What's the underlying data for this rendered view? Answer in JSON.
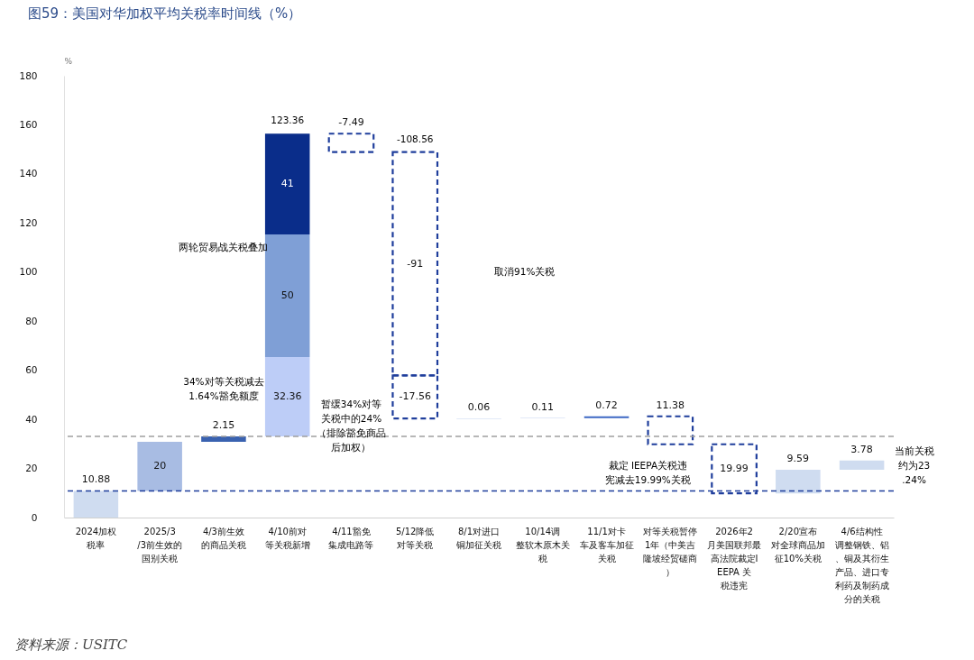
{
  "chart_data": {
    "type": "bar",
    "title": "图59：美国对华加权平均关税率时间线（%）",
    "ylabel": "%",
    "categories": [
      "2024加权税率",
      "2025/3/3前生效的国别关税",
      "4/3前生效的商品关税",
      "4/10前对等关税新增",
      "4/11豁免集成电路等",
      "5/12降低对等关税",
      "8/1对进口铜加征关税",
      "10/14调整软木原木关税",
      "11/1对卡车及客车加征关税",
      "对等关税暂停1年（中美吉隆坡经贸磋商）",
      "2026年2月美国联邦最高法院裁定IEEPA 关税违宪",
      "2/20宣布对全球商品加征10%关税",
      "4/6结构性调整钢铁、铝、铜及其衍生产品、进口专利药及制药成分的关税"
    ],
    "series": [
      {
        "colors": [
          "#cfdcf0",
          "#a8bce3",
          "#3a62b0",
          "#bdcdf7",
          null,
          null,
          "#8aa6de",
          "#8aa6de",
          "#3c67c4",
          null,
          null,
          "#cfdcf0",
          "#cfdcf0"
        ],
        "base": [
          0,
          10.88,
          30.88,
          33.03,
          null,
          null,
          40.34,
          40.4,
          40.51,
          null,
          null,
          9.86,
          19.45
        ],
        "values": [
          10.88,
          20,
          2.15,
          32.36,
          null,
          null,
          0.06,
          0.11,
          0.72,
          null,
          null,
          9.59,
          3.78
        ]
      },
      {
        "color": "#7f9fd6",
        "base": [
          null,
          null,
          null,
          65.39,
          null,
          null,
          null,
          null,
          null,
          null,
          null,
          null,
          null
        ],
        "values": [
          null,
          null,
          null,
          50,
          null,
          null,
          null,
          null,
          null,
          null,
          null,
          null,
          null
        ]
      },
      {
        "color": "#0a2d8a",
        "base": [
          null,
          null,
          null,
          115.39,
          null,
          null,
          null,
          null,
          null,
          null,
          null,
          null,
          null
        ],
        "values": [
          null,
          null,
          null,
          41,
          null,
          null,
          null,
          null,
          null,
          null,
          null,
          null,
          null
        ]
      },
      {
        "color": "#1f3e9c",
        "line_style": "dashed",
        "base": [
          null,
          null,
          null,
          null,
          156.39,
          148.9,
          null,
          null,
          null,
          29.85,
          9.86,
          null,
          null
        ],
        "values": [
          null,
          null,
          null,
          null,
          -7.49,
          -91,
          null,
          null,
          null,
          11.38,
          19.99,
          null,
          null
        ]
      },
      {
        "color": "#1f3e9c",
        "line_style": "dashed",
        "base": [
          null,
          null,
          null,
          null,
          null,
          57.9,
          null,
          null,
          null,
          null,
          null,
          null,
          null
        ],
        "values": [
          null,
          null,
          null,
          null,
          null,
          -17.56,
          null,
          null,
          null,
          null,
          null,
          null,
          null
        ]
      }
    ],
    "data_labels": true,
    "ylim": [
      0,
      180
    ],
    "yticks": [
      0,
      20,
      40,
      60,
      80,
      100,
      120,
      140,
      160,
      180
    ],
    "ref_lines": [
      {
        "axis": "y",
        "value": 33.03,
        "color": "#a0a0a0",
        "line_style": "dashed"
      },
      {
        "axis": "y",
        "value": 10.88,
        "color": "#1f3e9c",
        "line_style": "dashed"
      }
    ],
    "annotations": [
      {
        "text": "123.36",
        "x": "4/10前对等关税新增",
        "y": 156.39
      },
      {
        "text": "-108.56",
        "x": "5/12降低对等关税",
        "y": 148.9
      },
      "两轮贸易战关税叠加",
      "34%对等关税减去1.64%豁免额度",
      "暂缓34%对等关税中的24%（排除豁免商品后加权）",
      "取消91%关税",
      "裁定 IEEPA关税违宪减去19.99%关税",
      "当前关税约为23.24%",
      "资料来源：USITC"
    ]
  }
}
